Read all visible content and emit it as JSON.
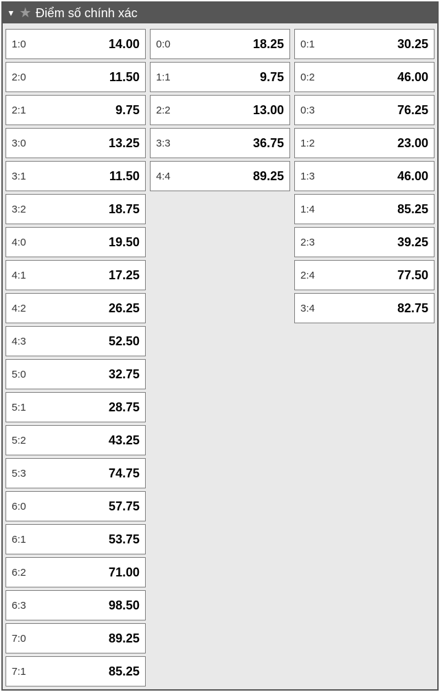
{
  "header": {
    "title": "Điểm số chính xác"
  },
  "columns": [
    [
      {
        "score": "1:0",
        "odds": "14.00"
      },
      {
        "score": "2:0",
        "odds": "11.50"
      },
      {
        "score": "2:1",
        "odds": "9.75"
      },
      {
        "score": "3:0",
        "odds": "13.25"
      },
      {
        "score": "3:1",
        "odds": "11.50"
      },
      {
        "score": "3:2",
        "odds": "18.75"
      },
      {
        "score": "4:0",
        "odds": "19.50"
      },
      {
        "score": "4:1",
        "odds": "17.25"
      },
      {
        "score": "4:2",
        "odds": "26.25"
      },
      {
        "score": "4:3",
        "odds": "52.50"
      },
      {
        "score": "5:0",
        "odds": "32.75"
      },
      {
        "score": "5:1",
        "odds": "28.75"
      },
      {
        "score": "5:2",
        "odds": "43.25"
      },
      {
        "score": "5:3",
        "odds": "74.75"
      },
      {
        "score": "6:0",
        "odds": "57.75"
      },
      {
        "score": "6:1",
        "odds": "53.75"
      },
      {
        "score": "6:2",
        "odds": "71.00"
      },
      {
        "score": "6:3",
        "odds": "98.50"
      },
      {
        "score": "7:0",
        "odds": "89.25"
      },
      {
        "score": "7:1",
        "odds": "85.25"
      }
    ],
    [
      {
        "score": "0:0",
        "odds": "18.25"
      },
      {
        "score": "1:1",
        "odds": "9.75"
      },
      {
        "score": "2:2",
        "odds": "13.00"
      },
      {
        "score": "3:3",
        "odds": "36.75"
      },
      {
        "score": "4:4",
        "odds": "89.25"
      }
    ],
    [
      {
        "score": "0:1",
        "odds": "30.25"
      },
      {
        "score": "0:2",
        "odds": "46.00"
      },
      {
        "score": "0:3",
        "odds": "76.25"
      },
      {
        "score": "1:2",
        "odds": "23.00"
      },
      {
        "score": "1:3",
        "odds": "46.00"
      },
      {
        "score": "1:4",
        "odds": "85.25"
      },
      {
        "score": "2:3",
        "odds": "39.25"
      },
      {
        "score": "2:4",
        "odds": "77.50"
      },
      {
        "score": "3:4",
        "odds": "82.75"
      }
    ]
  ]
}
